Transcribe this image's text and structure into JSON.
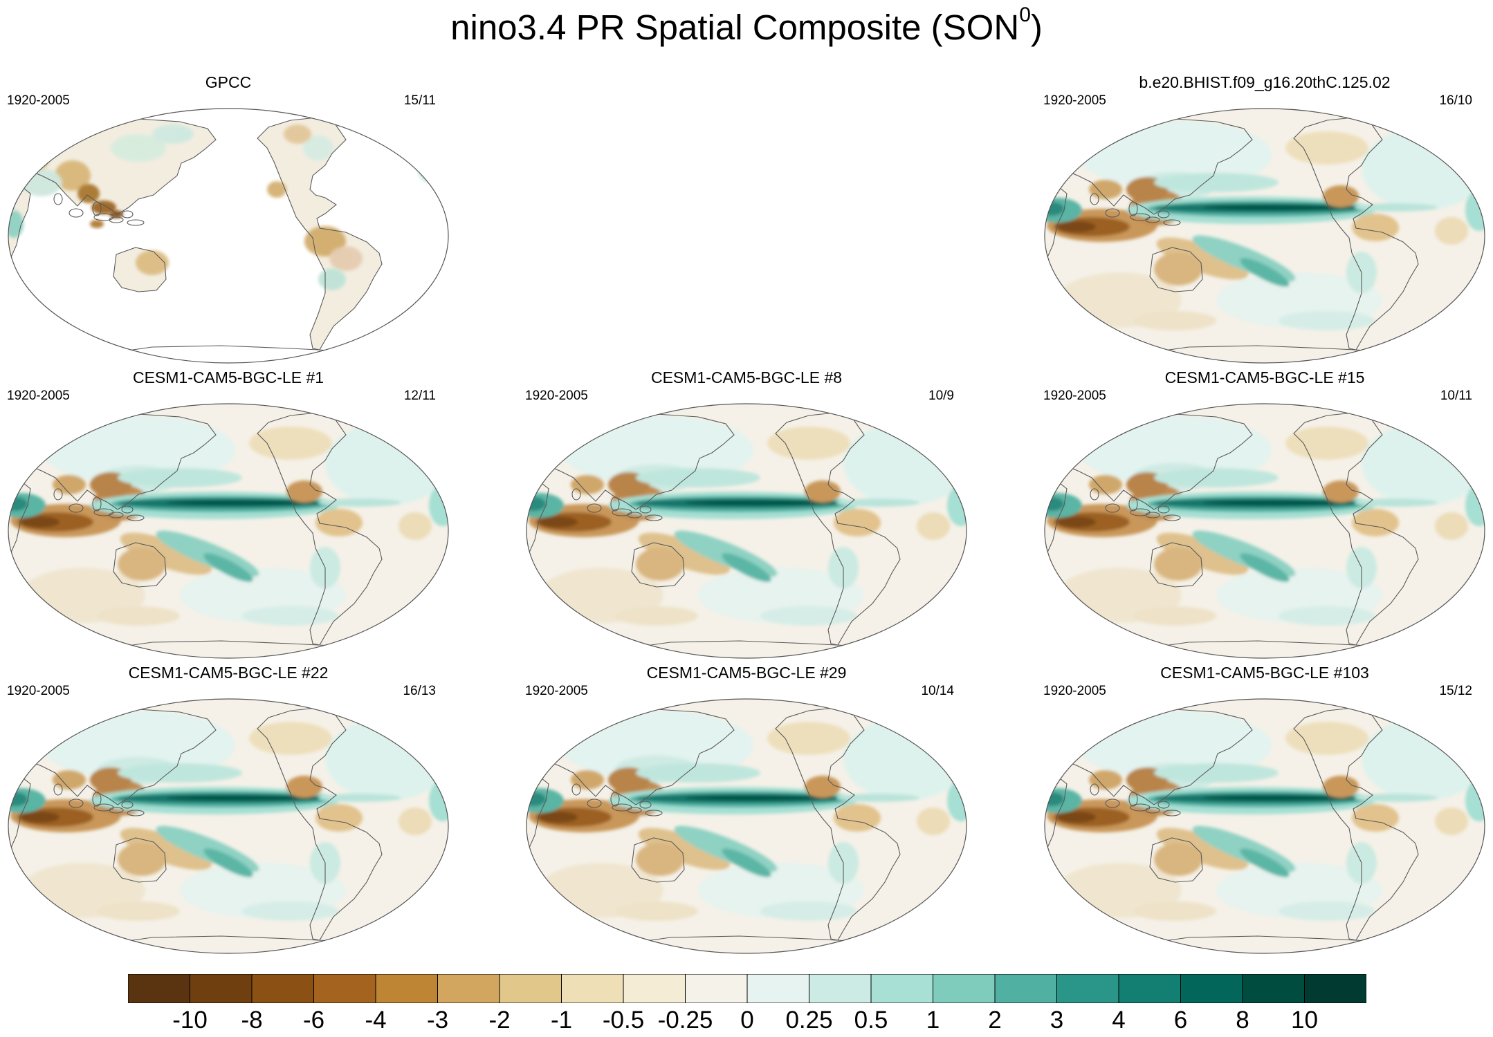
{
  "figure": {
    "title": "nino3.4 PR Spatial Composite (SON",
    "title_sup": "0",
    "title_end": ")"
  },
  "panels": [
    {
      "name": "GPCC",
      "period": "1920-2005",
      "count": "15/11",
      "style": "obs"
    },
    {
      "name": "b.e20.BHIST.f09_g16.20thC.125.02",
      "period": "1920-2005",
      "count": "16/10",
      "style": "model"
    },
    {
      "name": "CESM1-CAM5-BGC-LE #1",
      "period": "1920-2005",
      "count": "12/11",
      "style": "model"
    },
    {
      "name": "CESM1-CAM5-BGC-LE #8",
      "period": "1920-2005",
      "count": "10/9",
      "style": "model"
    },
    {
      "name": "CESM1-CAM5-BGC-LE #15",
      "period": "1920-2005",
      "count": "10/11",
      "style": "model"
    },
    {
      "name": "CESM1-CAM5-BGC-LE #22",
      "period": "1920-2005",
      "count": "16/13",
      "style": "model"
    },
    {
      "name": "CESM1-CAM5-BGC-LE #29",
      "period": "1920-2005",
      "count": "10/14",
      "style": "model"
    },
    {
      "name": "CESM1-CAM5-BGC-LE #103",
      "period": "1920-2005",
      "count": "15/12",
      "style": "model"
    }
  ],
  "colorbar": {
    "labels": [
      "-10",
      "-8",
      "-6",
      "-4",
      "-3",
      "-2",
      "-1",
      "-0.5",
      "-0.25",
      "0",
      "0.25",
      "0.5",
      "1",
      "2",
      "3",
      "4",
      "6",
      "8",
      "10"
    ],
    "colors": [
      "#5a3311",
      "#703f0f",
      "#8b5014",
      "#a56320",
      "#be8534",
      "#d2a65f",
      "#e2c78b",
      "#efdfb6",
      "#f5ecd6",
      "#f5f2ea",
      "#e6f3f0",
      "#cbebe4",
      "#a8e0d6",
      "#7fccbc",
      "#50b1a3",
      "#2a968a",
      "#137e72",
      "#02665a",
      "#004d40",
      "#003a30"
    ]
  }
}
